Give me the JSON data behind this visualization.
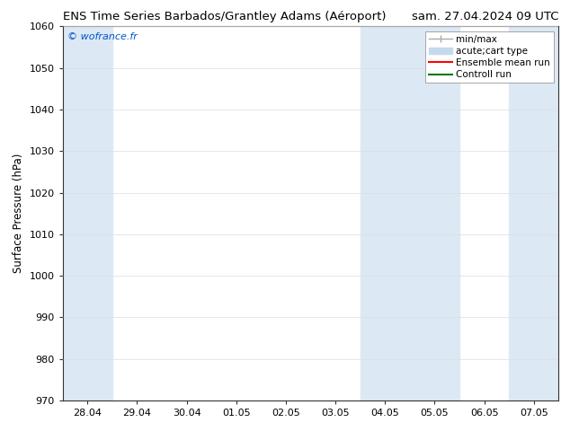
{
  "title_left": "ENS Time Series Barbados/Grantley Adams (Aéroport)",
  "title_right": "sam. 27.04.2024 09 UTC",
  "ylabel": "Surface Pressure (hPa)",
  "ylim": [
    970,
    1060
  ],
  "yticks": [
    970,
    980,
    990,
    1000,
    1010,
    1020,
    1030,
    1040,
    1050,
    1060
  ],
  "xtick_labels": [
    "28.04",
    "29.04",
    "30.04",
    "01.05",
    "02.05",
    "03.05",
    "04.05",
    "05.05",
    "06.05",
    "07.05"
  ],
  "copyright_text": "© wofrance.fr",
  "copyright_color": "#0055cc",
  "shaded_bands": [
    {
      "xstart": 0,
      "xend": 1,
      "color": "#dde8f5"
    },
    {
      "xstart": 6,
      "xend": 8,
      "color": "#dde8f5"
    },
    {
      "xstart": 9,
      "xend": 10,
      "color": "#dde8f5"
    }
  ],
  "legend_entries": [
    {
      "label": "min/max",
      "color": "#aaaaaa",
      "lw": 1,
      "type": "minmax"
    },
    {
      "label": "acute;cart type",
      "color": "#c5d9ee",
      "lw": 4,
      "type": "fill"
    },
    {
      "label": "Ensemble mean run",
      "color": "#ff0000",
      "lw": 1.5,
      "type": "line"
    },
    {
      "label": "Controll run",
      "color": "#007700",
      "lw": 1.5,
      "type": "line"
    }
  ],
  "background_color": "#ffffff",
  "plot_bg_color": "#ffffff",
  "grid_color": "#dddddd",
  "title_fontsize": 9.5,
  "tick_fontsize": 8,
  "ylabel_fontsize": 8.5,
  "legend_fontsize": 7.5
}
